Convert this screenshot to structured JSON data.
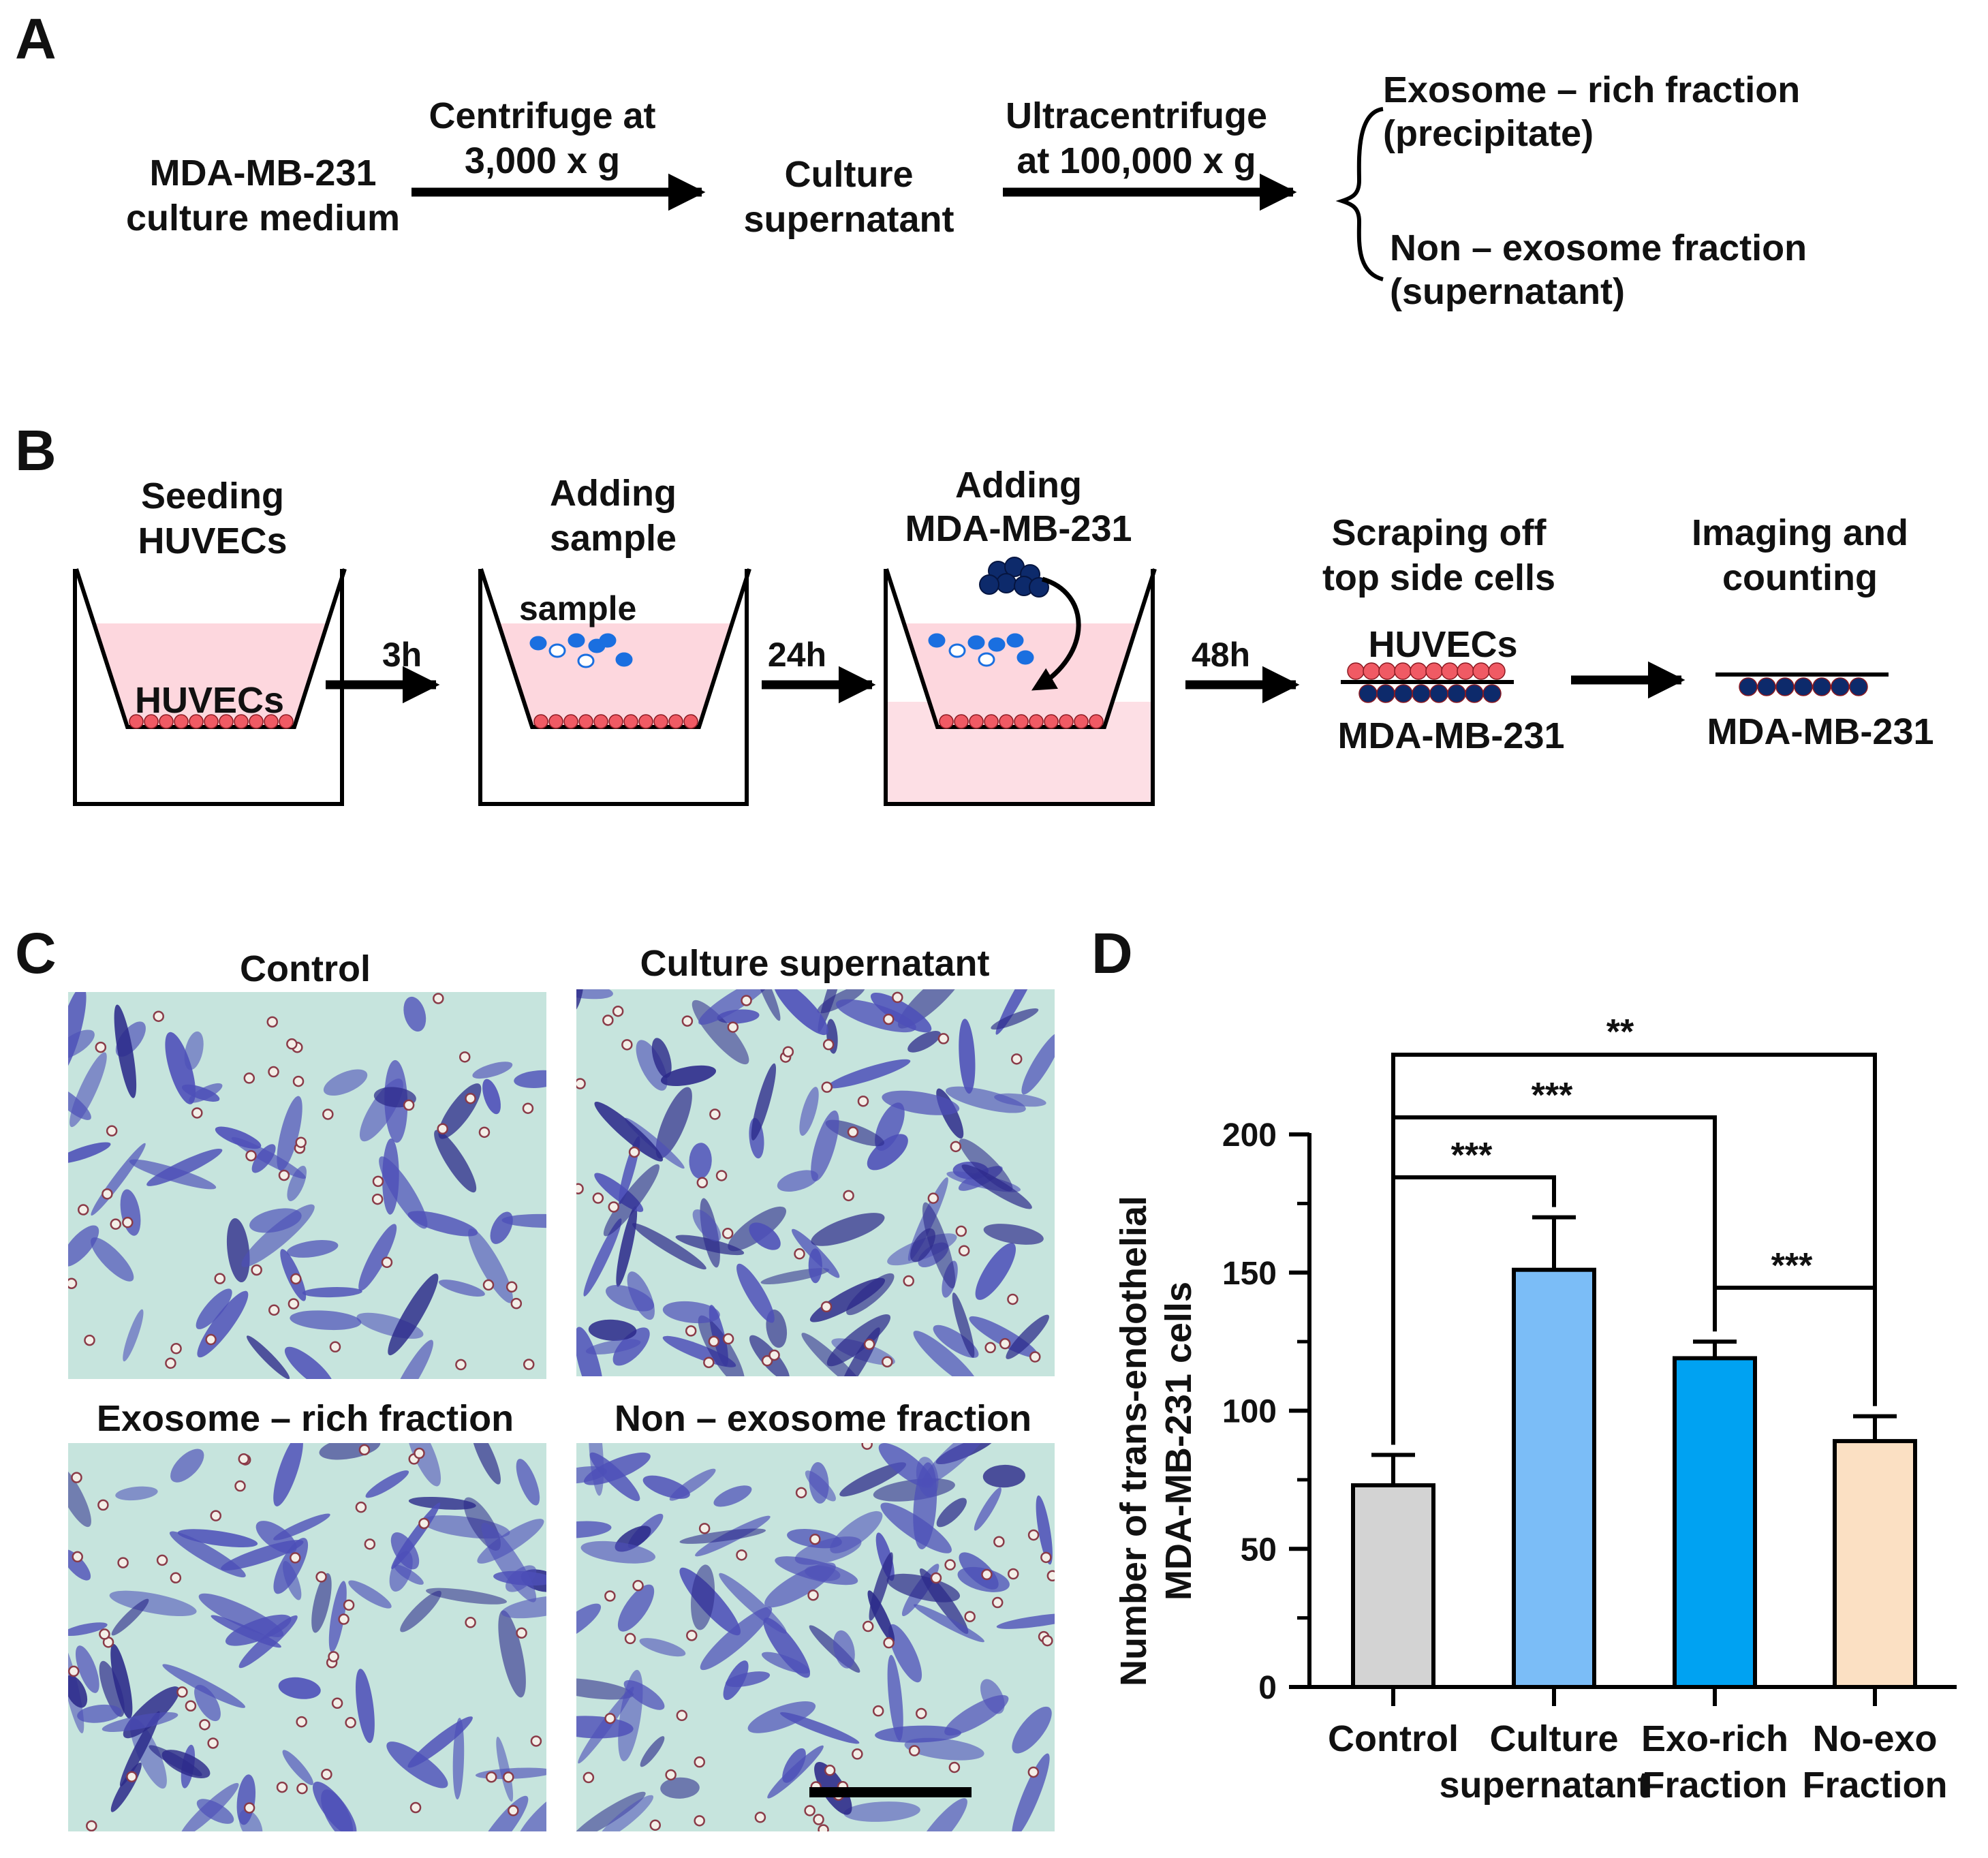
{
  "panels": {
    "a": {
      "letter": "A"
    },
    "b": {
      "letter": "B"
    },
    "c": {
      "letter": "C"
    },
    "d": {
      "letter": "D"
    }
  },
  "panel_a": {
    "start": [
      "MDA-MB-231",
      "culture medium"
    ],
    "step1": [
      "Centrifuge at",
      "3,000  x g"
    ],
    "middle": [
      "Culture",
      "supernatant"
    ],
    "step2": [
      "Ultracentrifuge",
      "at 100,000   x g"
    ],
    "out1": [
      "Exosome  – rich  fraction",
      "(precipitate)"
    ],
    "out2": [
      "Non – exosome  fraction",
      "(supernatant)"
    ]
  },
  "panel_b": {
    "stages": [
      {
        "title": [
          "Seeding",
          "HUVECs"
        ],
        "inner_label": "HUVECs"
      },
      {
        "title": [
          "Adding",
          "sample"
        ],
        "inner_label": "sample"
      },
      {
        "title": [
          "Adding",
          "MDA-MB-231"
        ]
      },
      {
        "title": [
          "Scraping off",
          "top side cells"
        ],
        "top_label": "HUVECs",
        "bottom_label": "MDA-MB-231"
      },
      {
        "title": [
          "Imaging and",
          "counting"
        ],
        "bottom_label": "MDA-MB-231"
      }
    ],
    "times": [
      "3h",
      "24h",
      "48h"
    ],
    "colors": {
      "well_fill": "#fdd7de",
      "huvec": "#f05a64",
      "tumor": "#0d2a6b",
      "sample": "#1a6fe0"
    }
  },
  "panel_c": {
    "images": [
      {
        "title": "Control"
      },
      {
        "title": "Culture supernatant"
      },
      {
        "title": "Exosome  – rich  fraction"
      },
      {
        "title": "Non – exosome  fraction"
      }
    ],
    "colors": {
      "background": "#c6e4dd",
      "stain": "#4d4fb8"
    }
  },
  "chart_data": {
    "type": "bar",
    "ylabel": [
      "Number of trans-endothelial",
      "MDA-MB-231 cells"
    ],
    "ylim": [
      0,
      200
    ],
    "yticks": [
      0,
      50,
      100,
      150,
      200
    ],
    "categories": [
      [
        "Control"
      ],
      [
        "Culture",
        "supernatant"
      ],
      [
        "Exo-rich",
        "Fraction"
      ],
      [
        "No-exo",
        "Fraction"
      ]
    ],
    "values": [
      73,
      151,
      119,
      89
    ],
    "errors": [
      11,
      19,
      6,
      9
    ],
    "colors": [
      "#d3d3d3",
      "#7bbdf7",
      "#00a2f2",
      "#fbe0c3"
    ],
    "significance": [
      {
        "from": 0,
        "to": 3,
        "label": "**"
      },
      {
        "from": 0,
        "to": 2,
        "label": "***"
      },
      {
        "from": 0,
        "to": 1,
        "label": "***"
      },
      {
        "from": 2,
        "to": 3,
        "label": "***"
      }
    ]
  }
}
